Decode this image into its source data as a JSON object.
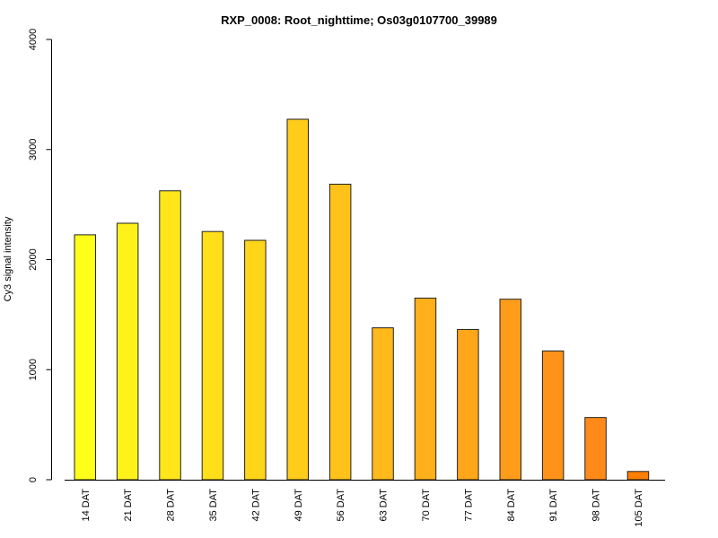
{
  "chart_data": {
    "type": "bar",
    "title": "RXP_0008: Root_nighttime; Os03g0107700_39989",
    "xlabel": "",
    "ylabel": "Cy3 signal intensity",
    "ylim": [
      0,
      4000
    ],
    "yticks": [
      0,
      1000,
      2000,
      3000,
      4000
    ],
    "categories": [
      "14 DAT",
      "21 DAT",
      "28 DAT",
      "35 DAT",
      "42 DAT",
      "49 DAT",
      "56 DAT",
      "63 DAT",
      "70 DAT",
      "77 DAT",
      "84 DAT",
      "91 DAT",
      "98 DAT",
      "105 DAT"
    ],
    "values": [
      2225,
      2330,
      2625,
      2255,
      2175,
      3275,
      2685,
      1380,
      1650,
      1365,
      1640,
      1170,
      565,
      75
    ],
    "colors": [
      "#ffff1a",
      "#fff21a",
      "#ffe61a",
      "#ffde1a",
      "#ffd51a",
      "#ffcc1a",
      "#ffc21a",
      "#ffb91a",
      "#ffb01a",
      "#ffa61a",
      "#ff9d1a",
      "#ff931a",
      "#ff8a1a",
      "#ff7f00"
    ],
    "grid": false,
    "legend": "none"
  }
}
